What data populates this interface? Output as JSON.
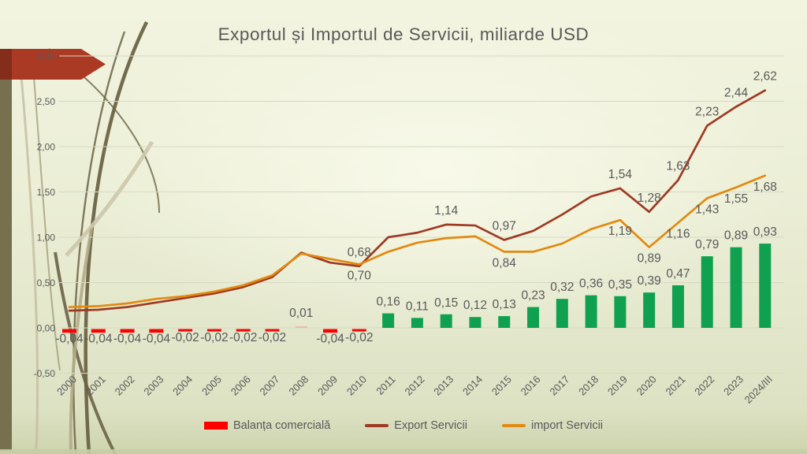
{
  "chart_data": {
    "type": "combo: bar + line",
    "title": "Exportul și Importul de Servicii, miliarde USD",
    "categories": [
      "2000",
      "2001",
      "2002",
      "2003",
      "2004",
      "2005",
      "2006",
      "2007",
      "2008",
      "2009",
      "2010",
      "2011",
      "2012",
      "2013",
      "2014",
      "2015",
      "2016",
      "2017",
      "2018",
      "2019",
      "2020",
      "2021",
      "2022",
      "2023",
      "2024/III"
    ],
    "series": [
      {
        "name": "Balanța comercială",
        "type": "bar",
        "color_positive": "#10a150",
        "color_negative": "#fe0000",
        "color_tiny": "#f5b5a3",
        "values": [
          -0.04,
          -0.04,
          -0.04,
          -0.04,
          -0.02,
          -0.02,
          -0.02,
          -0.02,
          0.01,
          -0.04,
          -0.02,
          0.16,
          0.11,
          0.15,
          0.12,
          0.13,
          0.23,
          0.32,
          0.36,
          0.35,
          0.39,
          0.47,
          0.79,
          0.89,
          0.93
        ],
        "labeled": "all"
      },
      {
        "name": "Export Servicii",
        "type": "line",
        "color": "#9e3a23",
        "values": [
          0.19,
          0.2,
          0.23,
          0.28,
          0.33,
          0.38,
          0.45,
          0.56,
          0.83,
          0.72,
          0.68,
          1.0,
          1.05,
          1.14,
          1.13,
          0.97,
          1.07,
          1.25,
          1.45,
          1.54,
          1.28,
          1.63,
          2.23,
          2.44,
          2.62
        ],
        "labeled_indices": [
          10,
          13,
          15,
          19,
          20,
          21,
          22,
          23,
          24
        ]
      },
      {
        "name": "import Servicii",
        "type": "line",
        "color": "#e2890f",
        "values": [
          0.23,
          0.24,
          0.27,
          0.32,
          0.35,
          0.4,
          0.47,
          0.58,
          0.82,
          0.76,
          0.7,
          0.84,
          0.94,
          0.99,
          1.01,
          0.84,
          0.84,
          0.93,
          1.09,
          1.19,
          0.89,
          1.16,
          1.43,
          1.55,
          1.68
        ],
        "labeled_indices": [
          10,
          15,
          19,
          20,
          21,
          22,
          23,
          24
        ]
      }
    ],
    "ylim": [
      -0.5,
      3.0
    ],
    "yticks": [
      3.0,
      2.5,
      2.0,
      1.5,
      1.0,
      0.5,
      0.0,
      -0.5
    ],
    "grid": true,
    "legend_position": "bottom",
    "decimal_separator": ",",
    "x_label_rotation": -45
  },
  "theme": {
    "grid_color": "#d6d9c5",
    "text_color": "#595959",
    "arrow_color": "#ab3a25",
    "side_strip_color": "#77704f"
  }
}
